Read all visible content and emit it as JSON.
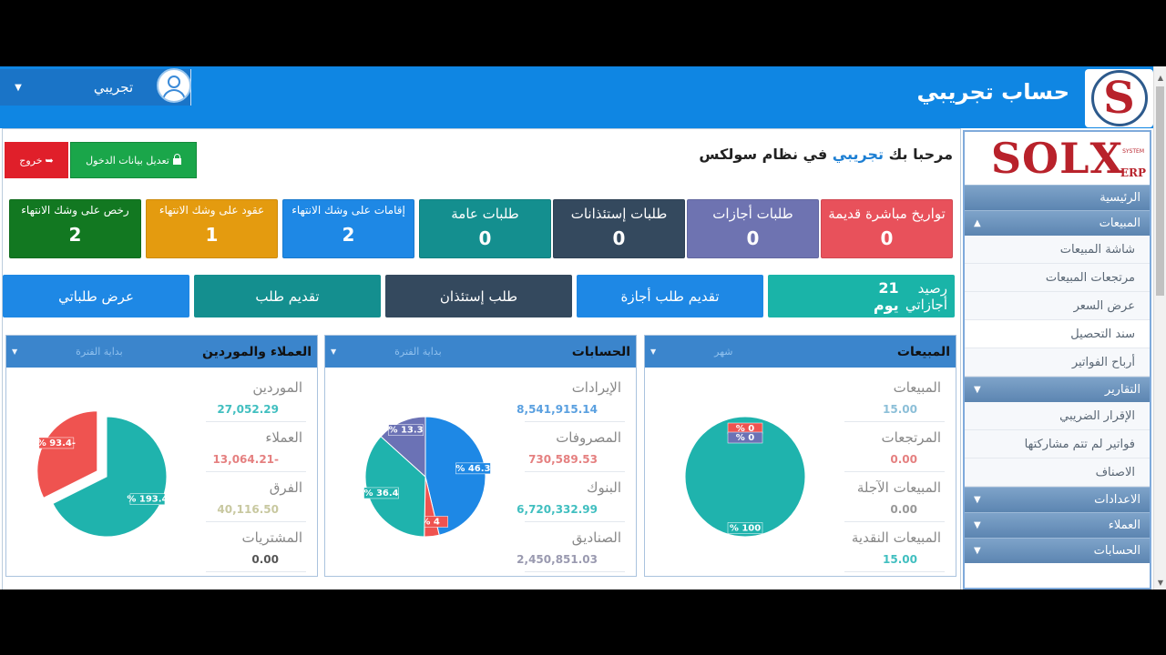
{
  "header": {
    "brand": "حساب تجريبي",
    "user_name": "تجريبي",
    "logo_letter": "S"
  },
  "sidebar": {
    "logo_text": "SOLX",
    "logo_erp": "ERP",
    "logo_system": "SYSTEM",
    "items": [
      {
        "label": "الرئيسية",
        "type": "head"
      },
      {
        "label": "المبيعات",
        "type": "head",
        "chev": "▲"
      },
      {
        "label": "شاشة المبيعات",
        "type": "item"
      },
      {
        "label": "مرتجعات المبيعات",
        "type": "item"
      },
      {
        "label": "عرض السعر",
        "type": "item"
      },
      {
        "label": "سند التحصيل",
        "type": "item",
        "active": true
      },
      {
        "label": "أرباح الفواتير",
        "type": "item"
      },
      {
        "label": "التقارير",
        "type": "head",
        "chev": "▼"
      },
      {
        "label": "الإقرار الضريبي",
        "type": "item"
      },
      {
        "label": "فواتير لم تتم مشاركتها",
        "type": "item"
      },
      {
        "label": "الاصناف",
        "type": "item"
      },
      {
        "label": "الاعدادات",
        "type": "head",
        "chev": "▼"
      },
      {
        "label": "العملاء",
        "type": "head",
        "chev": "▼"
      },
      {
        "label": "الحسابات",
        "type": "head",
        "chev": "▼"
      }
    ]
  },
  "welcome": {
    "prefix": "مرحبا بك",
    "user": "تجريبي",
    "suffix": "في نظام سولكس"
  },
  "buttons": {
    "edit_login": "تعديل بيانات الدخول",
    "logout": "خروج"
  },
  "tiles": [
    {
      "label": "تواريخ مباشرة قديمة",
      "value": "0",
      "color": "#e8515b"
    },
    {
      "label": "طلبات أجازات",
      "value": "0",
      "color": "#6e73b1"
    },
    {
      "label": "طلبات إستئذانات",
      "value": "0",
      "color": "#34495e"
    },
    {
      "label": "طلبات عامة",
      "value": "0",
      "color": "#148f8f"
    },
    {
      "label": "إقامات على وشك الانتهاء",
      "value": "2",
      "color": "#1e88e5"
    },
    {
      "label": "عقود على وشك الانتهاء",
      "value": "1",
      "color": "#e49b0f"
    },
    {
      "label": "رخص على وشك الانتهاء",
      "value": "2",
      "color": "#127821"
    }
  ],
  "actions": {
    "balance_label": "رصيد أجازاتي",
    "balance_days": "21 يوم",
    "request_leave": "تقديم طلب أجازة",
    "request_permission": "طلب إستئذان",
    "submit_request": "تقديم طلب",
    "view_requests": "عرض طلباتي"
  },
  "panels": {
    "sales": {
      "title": "المبيعات",
      "period": "شهر",
      "stats": [
        {
          "label": "المبيعات",
          "value": "15.00",
          "color": "#8cbfd8"
        },
        {
          "label": "المرتجعات",
          "value": "0.00",
          "color": "#e58080"
        },
        {
          "label": "المبيعات الآجلة",
          "value": "0.00",
          "color": "#999999"
        },
        {
          "label": "المبيعات النقدية",
          "value": "15.00",
          "color": "#41bfc0"
        }
      ]
    },
    "accounts": {
      "title": "الحسابات",
      "period": "بداية الفترة",
      "stats": [
        {
          "label": "الإيرادات",
          "value": "8,541,915.14",
          "color": "#5aa0e0"
        },
        {
          "label": "المصروفات",
          "value": "730,589.53",
          "color": "#e58080"
        },
        {
          "label": "البنوك",
          "value": "6,720,332.99",
          "color": "#41bfc0"
        },
        {
          "label": "الصناديق",
          "value": "2,450,851.03",
          "color": "#9a9ab0"
        }
      ]
    },
    "customers": {
      "title": "العملاء والموردين",
      "period": "بداية الفترة",
      "stats": [
        {
          "label": "الموردين",
          "value": "27,052.29",
          "color": "#41bfc0"
        },
        {
          "label": "العملاء",
          "value": "13,064.21-",
          "color": "#e58080"
        },
        {
          "label": "الفرق",
          "value": "40,116.50",
          "color": "#c8c8a0"
        },
        {
          "label": "المشتريات",
          "value": "0.00",
          "color": "#555555"
        }
      ]
    }
  },
  "chart_data": [
    {
      "type": "pie",
      "slices": [
        {
          "label": "% 100",
          "value": 100,
          "color": "#1fb3ad"
        },
        {
          "label": "% 0",
          "value": 0,
          "color": "#ef5350"
        },
        {
          "label": "% 0",
          "value": 0,
          "color": "#6b72b5"
        }
      ]
    },
    {
      "type": "pie",
      "slices": [
        {
          "label": "% 46.3",
          "value": 46.3,
          "color": "#1e88e5"
        },
        {
          "label": "% 4",
          "value": 4,
          "color": "#ef5350"
        },
        {
          "label": "% 36.4",
          "value": 36.4,
          "color": "#1fb3ad"
        },
        {
          "label": "% 13.3",
          "value": 13.3,
          "color": "#6b72b5"
        }
      ]
    },
    {
      "type": "pie",
      "slices": [
        {
          "label": "% 193.4",
          "value": 67.6,
          "color": "#1fb3ad"
        },
        {
          "label": "% 93.4-",
          "value": 32.4,
          "color": "#ef5350",
          "exploded": true
        }
      ]
    }
  ]
}
